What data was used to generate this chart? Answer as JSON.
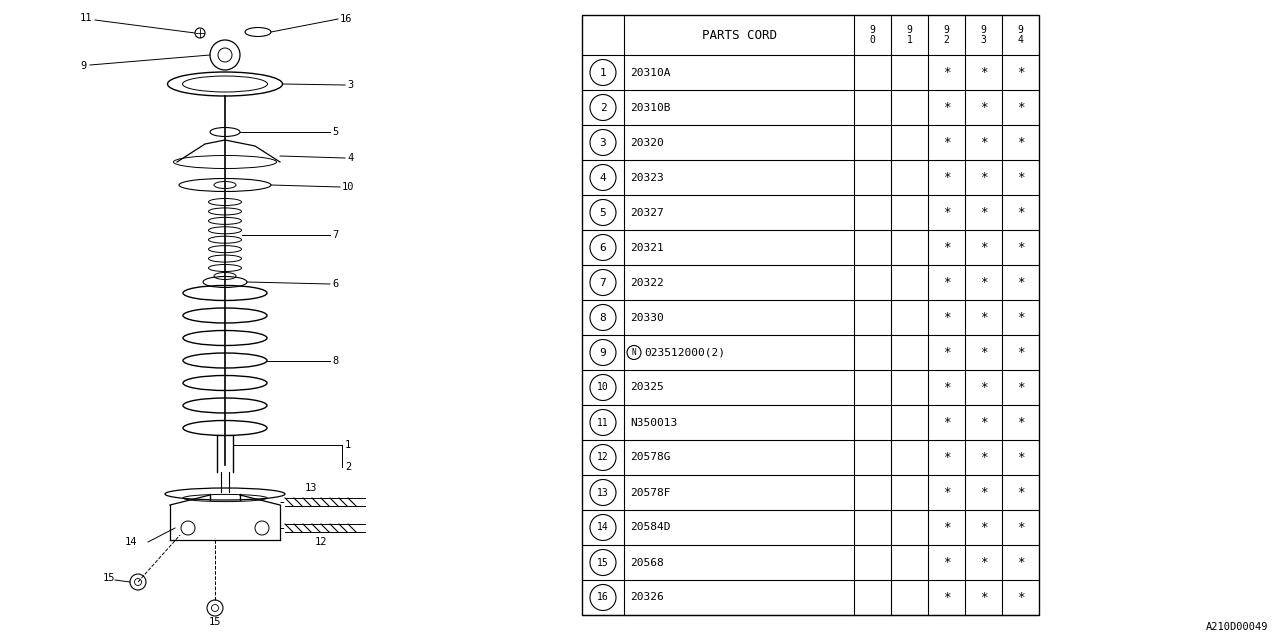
{
  "bg_color": "#ffffff",
  "parts": [
    {
      "num": "1",
      "code": "20310A",
      "y90": " ",
      "y91": " ",
      "y92": "*",
      "y93": "*",
      "y94": "*"
    },
    {
      "num": "2",
      "code": "20310B",
      "y90": " ",
      "y91": " ",
      "y92": "*",
      "y93": "*",
      "y94": "*"
    },
    {
      "num": "3",
      "code": "20320",
      "y90": " ",
      "y91": " ",
      "y92": "*",
      "y93": "*",
      "y94": "*"
    },
    {
      "num": "4",
      "code": "20323",
      "y90": " ",
      "y91": " ",
      "y92": "*",
      "y93": "*",
      "y94": "*"
    },
    {
      "num": "5",
      "code": "20327",
      "y90": " ",
      "y91": " ",
      "y92": "*",
      "y93": "*",
      "y94": "*"
    },
    {
      "num": "6",
      "code": "20321",
      "y90": " ",
      "y91": " ",
      "y92": "*",
      "y93": "*",
      "y94": "*"
    },
    {
      "num": "7",
      "code": "20322",
      "y90": " ",
      "y91": " ",
      "y92": "*",
      "y93": "*",
      "y94": "*"
    },
    {
      "num": "8",
      "code": "20330",
      "y90": " ",
      "y91": " ",
      "y92": "*",
      "y93": "*",
      "y94": "*"
    },
    {
      "num": "9",
      "code": "N023512000(2)",
      "y90": " ",
      "y91": " ",
      "y92": "*",
      "y93": "*",
      "y94": "*"
    },
    {
      "num": "10",
      "code": "20325",
      "y90": " ",
      "y91": " ",
      "y92": "*",
      "y93": "*",
      "y94": "*"
    },
    {
      "num": "11",
      "code": "N350013",
      "y90": " ",
      "y91": " ",
      "y92": "*",
      "y93": "*",
      "y94": "*"
    },
    {
      "num": "12",
      "code": "20578G",
      "y90": " ",
      "y91": " ",
      "y92": "*",
      "y93": "*",
      "y94": "*"
    },
    {
      "num": "13",
      "code": "20578F",
      "y90": " ",
      "y91": " ",
      "y92": "*",
      "y93": "*",
      "y94": "*"
    },
    {
      "num": "14",
      "code": "20584D",
      "y90": " ",
      "y91": " ",
      "y92": "*",
      "y93": "*",
      "y94": "*"
    },
    {
      "num": "15",
      "code": "20568",
      "y90": " ",
      "y91": " ",
      "y92": "*",
      "y93": "*",
      "y94": "*"
    },
    {
      "num": "16",
      "code": "20326",
      "y90": " ",
      "y91": " ",
      "y92": "*",
      "y93": "*",
      "y94": "*"
    }
  ],
  "watermark": "A210D00049",
  "line_color": "#000000",
  "text_color": "#000000"
}
